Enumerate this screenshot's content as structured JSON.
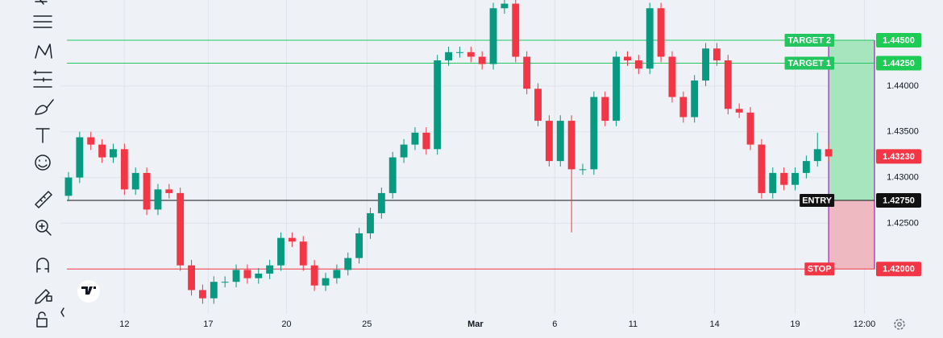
{
  "chart_data": {
    "type": "candlestick",
    "up_color": "#089981",
    "down_color": "#f23645",
    "candles": [
      [
        1.428,
        1.4306,
        1.4274,
        1.43
      ],
      [
        1.43,
        1.435,
        1.4294,
        1.4344
      ],
      [
        1.4344,
        1.435,
        1.433,
        1.4336
      ],
      [
        1.4336,
        1.4342,
        1.4316,
        1.4322
      ],
      [
        1.4322,
        1.4337,
        1.4316,
        1.4331
      ],
      [
        1.4331,
        1.4337,
        1.4281,
        1.4287
      ],
      [
        1.4287,
        1.4311,
        1.4281,
        1.4305
      ],
      [
        1.4305,
        1.4311,
        1.4259,
        1.4265
      ],
      [
        1.4265,
        1.4293,
        1.4259,
        1.4287
      ],
      [
        1.4287,
        1.4293,
        1.4277,
        1.4283
      ],
      [
        1.4283,
        1.4289,
        1.4198,
        1.4204
      ],
      [
        1.4204,
        1.421,
        1.4171,
        1.4177
      ],
      [
        1.4177,
        1.4183,
        1.4162,
        1.4168
      ],
      [
        1.4168,
        1.4192,
        1.4162,
        1.4186
      ],
      [
        1.4186,
        1.4192,
        1.418,
        1.4186
      ],
      [
        1.4186,
        1.4205,
        1.418,
        1.4199
      ],
      [
        1.4199,
        1.4205,
        1.4184,
        1.419
      ],
      [
        1.419,
        1.4201,
        1.4184,
        1.4195
      ],
      [
        1.4195,
        1.421,
        1.4189,
        1.4204
      ],
      [
        1.4204,
        1.424,
        1.4198,
        1.4234
      ],
      [
        1.4234,
        1.424,
        1.4224,
        1.423
      ],
      [
        1.423,
        1.4236,
        1.4198,
        1.4204
      ],
      [
        1.4204,
        1.421,
        1.4176,
        1.4182
      ],
      [
        1.4182,
        1.4196,
        1.4176,
        1.419
      ],
      [
        1.419,
        1.4205,
        1.4184,
        1.4199
      ],
      [
        1.4199,
        1.4218,
        1.4193,
        1.4212
      ],
      [
        1.4212,
        1.4245,
        1.4206,
        1.4239
      ],
      [
        1.4239,
        1.4267,
        1.4233,
        1.4261
      ],
      [
        1.4261,
        1.4289,
        1.4255,
        1.4283
      ],
      [
        1.4283,
        1.4328,
        1.4277,
        1.4322
      ],
      [
        1.4322,
        1.4342,
        1.4316,
        1.4336
      ],
      [
        1.4336,
        1.4355,
        1.433,
        1.4349
      ],
      [
        1.4349,
        1.4355,
        1.4325,
        1.4331
      ],
      [
        1.4331,
        1.4434,
        1.4325,
        1.4428
      ],
      [
        1.4428,
        1.4443,
        1.4422,
        1.4437
      ],
      [
        1.4437,
        1.4443,
        1.4431,
        1.4437
      ],
      [
        1.4437,
        1.4443,
        1.4426,
        1.4432
      ],
      [
        1.4432,
        1.4438,
        1.4418,
        1.4424
      ],
      [
        1.4424,
        1.4491,
        1.4418,
        1.4485
      ],
      [
        1.4485,
        1.4496,
        1.4479,
        1.449
      ],
      [
        1.449,
        1.4496,
        1.4426,
        1.4432
      ],
      [
        1.4432,
        1.4438,
        1.4391,
        1.4397
      ],
      [
        1.4397,
        1.4403,
        1.4356,
        1.4362
      ],
      [
        1.4362,
        1.4368,
        1.4312,
        1.4318
      ],
      [
        1.4318,
        1.4368,
        1.4312,
        1.4362
      ],
      [
        1.4362,
        1.4368,
        1.424,
        1.4309
      ],
      [
        1.4309,
        1.4315,
        1.4303,
        1.4309
      ],
      [
        1.4309,
        1.4394,
        1.4303,
        1.4388
      ],
      [
        1.4388,
        1.4394,
        1.4356,
        1.4362
      ],
      [
        1.4362,
        1.4438,
        1.4356,
        1.4432
      ],
      [
        1.4432,
        1.4438,
        1.4422,
        1.4428
      ],
      [
        1.4428,
        1.4434,
        1.4413,
        1.4419
      ],
      [
        1.4419,
        1.4491,
        1.4413,
        1.4485
      ],
      [
        1.4485,
        1.4491,
        1.4426,
        1.4432
      ],
      [
        1.4432,
        1.4438,
        1.4382,
        1.4388
      ],
      [
        1.4388,
        1.4394,
        1.436,
        1.4366
      ],
      [
        1.4366,
        1.4412,
        1.436,
        1.4406
      ],
      [
        1.4406,
        1.4447,
        1.44,
        1.4441
      ],
      [
        1.4441,
        1.4447,
        1.4422,
        1.4428
      ],
      [
        1.4428,
        1.4434,
        1.4369,
        1.4375
      ],
      [
        1.4375,
        1.4381,
        1.4365,
        1.4371
      ],
      [
        1.4371,
        1.4377,
        1.433,
        1.4336
      ],
      [
        1.4336,
        1.4342,
        1.4277,
        1.4283
      ],
      [
        1.4283,
        1.4311,
        1.4277,
        1.4305
      ],
      [
        1.4305,
        1.4311,
        1.4286,
        1.4292
      ],
      [
        1.4292,
        1.4311,
        1.4286,
        1.4305
      ],
      [
        1.4305,
        1.4324,
        1.4299,
        1.4318
      ],
      [
        1.4318,
        1.4349,
        1.4312,
        1.4331
      ],
      [
        1.4331,
        1.4337,
        1.4317,
        1.4323
      ]
    ],
    "xlim": [
      -0.72,
      72.1
    ],
    "xticks": [
      {
        "value": 5,
        "label": "12"
      },
      {
        "value": 12.5,
        "label": "17"
      },
      {
        "value": 19.5,
        "label": "20"
      },
      {
        "value": 26.7,
        "label": "25"
      },
      {
        "value": 36.4,
        "label": "Mar"
      },
      {
        "value": 43.5,
        "label": "6"
      },
      {
        "value": 50.5,
        "label": "11"
      },
      {
        "value": 57.8,
        "label": "14"
      },
      {
        "value": 65,
        "label": "19"
      },
      {
        "value": 71.2,
        "label": "12:00"
      }
    ],
    "ylim": [
      1.4151,
      1.4494
    ],
    "yticks": [
      {
        "value": 1.425,
        "label": "1.42500"
      },
      {
        "value": 1.43,
        "label": "1.43000"
      },
      {
        "value": 1.435,
        "label": "1.43500"
      },
      {
        "value": 1.44,
        "label": "1.44000"
      }
    ],
    "grid": true,
    "last_price": {
      "value": 1.4323,
      "label": "1.43230"
    },
    "levels": [
      {
        "label": "TARGET 2",
        "value": 1.445,
        "value_label": "1.44500",
        "color": "#22c55e"
      },
      {
        "label": "TARGET 1",
        "value": 1.4425,
        "value_label": "1.44250",
        "color": "#22c55e"
      },
      {
        "label": "ENTRY",
        "value": 1.4275,
        "value_label": "1.42750",
        "color": "#111111"
      },
      {
        "label": "STOP",
        "value": 1.42,
        "value_label": "1.42000",
        "color": "#f23645"
      }
    ]
  }
}
